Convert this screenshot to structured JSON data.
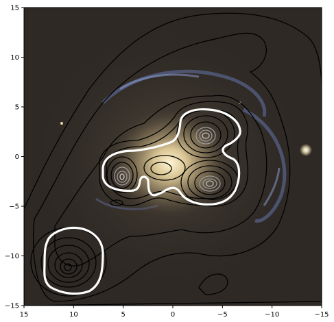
{
  "chart_data": {
    "type": "contour",
    "title": "",
    "xlabel": "",
    "ylabel": "",
    "xlim": [
      15,
      -15
    ],
    "ylim": [
      -15,
      15
    ],
    "x_ticks": [
      15,
      10,
      5,
      0,
      -5,
      -10,
      -15
    ],
    "y_ticks": [
      15,
      10,
      5,
      0,
      -5,
      -10,
      -15
    ],
    "x_tick_labels": [
      "15",
      "10",
      "5",
      "0",
      "−5",
      "−10",
      "−15"
    ],
    "y_tick_labels": [
      "15",
      "10",
      "5",
      "0",
      "−5",
      "−10",
      "−15"
    ],
    "background": "optical image of a spiral galaxy with bright yellow bulge and blue spiral arms",
    "grid": false,
    "colors": {
      "contour_lines": "#000000",
      "highlight_contour": "#ffffff",
      "inner_peak_contours": "#9a9a9a",
      "sky": "#2b2622",
      "bulge": "#f1dfae",
      "arms": "#6f86c8"
    },
    "sources": [
      {
        "name": "peak-north",
        "x": -3.2,
        "y": 2.0
      },
      {
        "name": "peak-south",
        "x": -3.6,
        "y": -2.6
      },
      {
        "name": "peak-west",
        "x": 5.2,
        "y": -2.2
      },
      {
        "name": "peak-lower-left",
        "x": 10.3,
        "y": -11.0
      }
    ],
    "contour_levels": 10,
    "highlight_level": "white"
  }
}
